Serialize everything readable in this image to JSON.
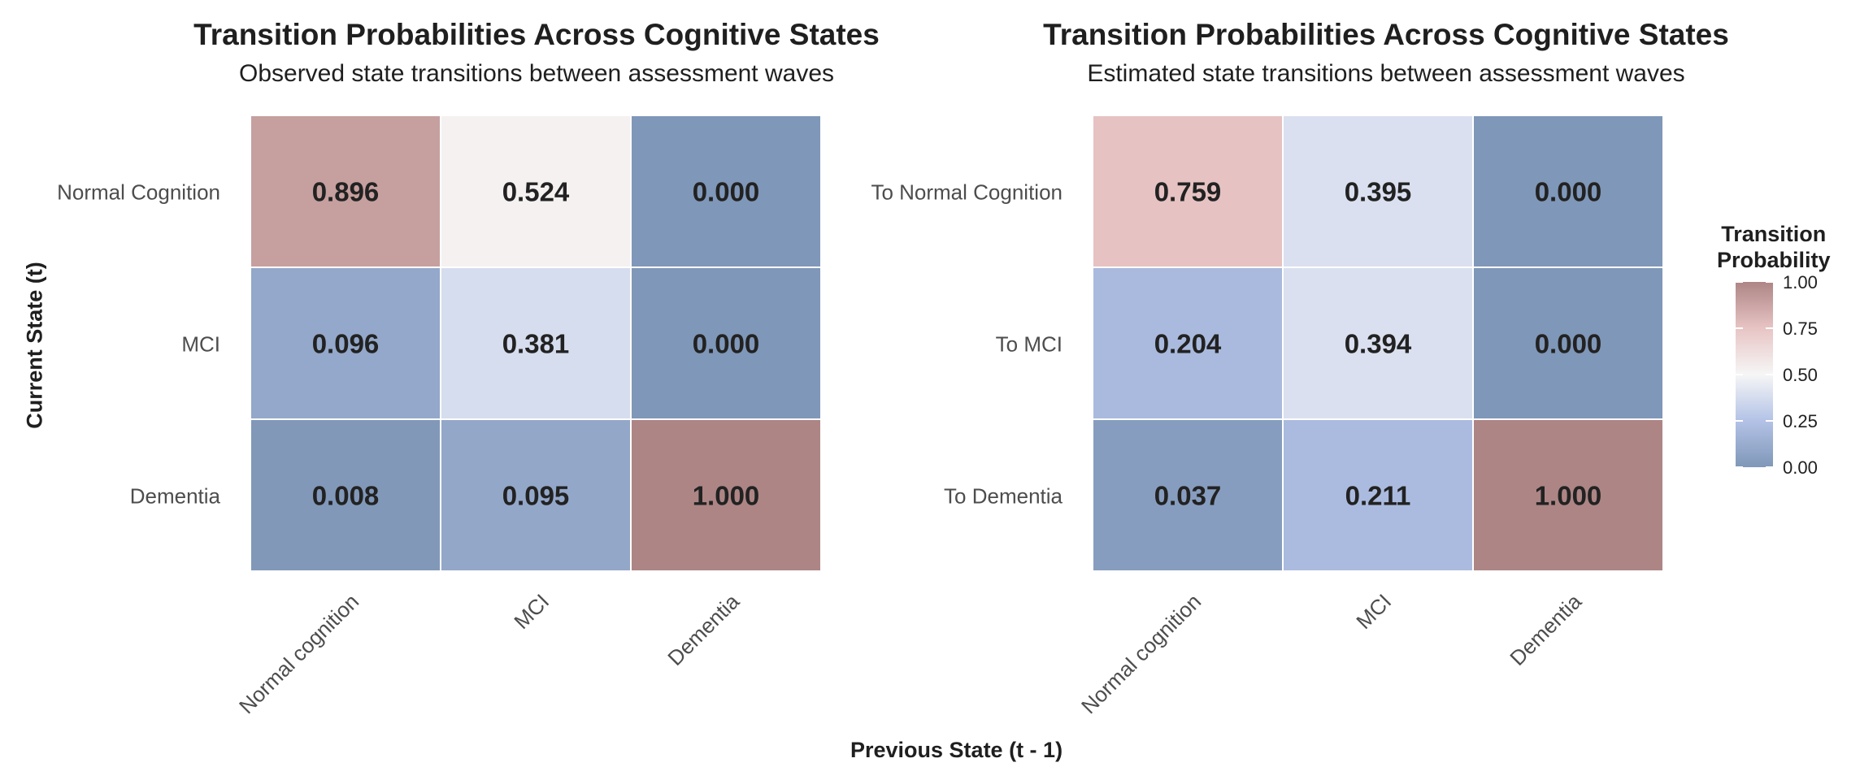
{
  "chart_data": [
    {
      "type": "heatmap",
      "title": "Transition Probabilities Across Cognitive States",
      "subtitle": "Observed state transitions between assessment waves",
      "x_categories": [
        "Normal cognition",
        "MCI",
        "Dementia"
      ],
      "y_categories": [
        "Normal Cognition",
        "MCI",
        "Dementia"
      ],
      "values": [
        [
          0.896,
          0.524,
          0.0
        ],
        [
          0.096,
          0.381,
          0.0
        ],
        [
          0.008,
          0.095,
          1.0
        ]
      ]
    },
    {
      "type": "heatmap",
      "title": "Transition Probabilities Across Cognitive States",
      "subtitle": "Estimated state transitions between assessment waves",
      "x_categories": [
        "Normal cognition",
        "MCI",
        "Dementia"
      ],
      "y_categories": [
        "To Normal Cognition",
        "To MCI",
        "To Dementia"
      ],
      "values": [
        [
          0.759,
          0.395,
          0.0
        ],
        [
          0.204,
          0.394,
          0.0
        ],
        [
          0.037,
          0.211,
          1.0
        ]
      ]
    }
  ],
  "shared": {
    "xlabel": "Previous State (t - 1)",
    "ylabel": "Current State (t)",
    "value_format_decimals": 3
  },
  "legend": {
    "title_line1": "Transition",
    "title_line2": "Probability",
    "ticks": [
      "1.00",
      "0.75",
      "0.50",
      "0.25",
      "0.00"
    ],
    "scale": {
      "low": "#7f97b8",
      "mid_low": "#b3c2e6",
      "mid": "#f6f6f6",
      "mid_high": "#e8c4c4",
      "high": "#ad8585"
    }
  }
}
